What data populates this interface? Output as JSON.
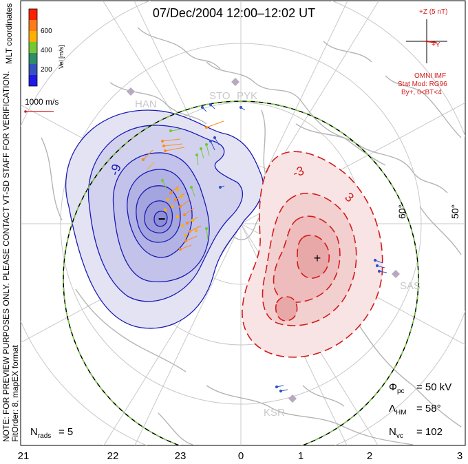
{
  "title": "07/Dec/2004 12:00–12:02 UT",
  "colorbar": {
    "title": "Vel [m/s]",
    "ticks": [
      "600",
      "400",
      "200"
    ],
    "colors": [
      "#ff2000",
      "#ff7a1a",
      "#ffb000",
      "#74c832",
      "#2e8c6a",
      "#3552c0",
      "#2018e8"
    ]
  },
  "coordinates_label": "MLT coordinates",
  "scale_vector_label": "1000 m/s",
  "side_note": "NOTE: FOR PREVIEW PURPOSES ONLY. PLEASE CONTACT VT-SD STAFF FOR VERIFICATION.",
  "fit_order": "FitOrder: 8, mapEX format",
  "imf": {
    "bz_label": "+Z (5 nT)",
    "by_label": "+Y",
    "source": "OMNI IMF",
    "stat_mod": "Stat Mod: RG96",
    "condition": "By+, 0<BT<4"
  },
  "radars": [
    "HAN",
    "STO",
    "PYK",
    "SAS",
    "KSR"
  ],
  "latitude_labels": [
    "60°",
    "50°"
  ],
  "contour_labels": [
    "-9",
    "-3",
    "3"
  ],
  "min_symbol": "−",
  "max_symbol": "+",
  "stats": {
    "phi_pc": "= 50 kV",
    "lambda_hm": "= 58°",
    "n_vc": "= 102",
    "n_rads": "= 5"
  },
  "mlt_axis": [
    "21",
    "22",
    "23",
    "0",
    "1",
    "2",
    "3"
  ]
}
